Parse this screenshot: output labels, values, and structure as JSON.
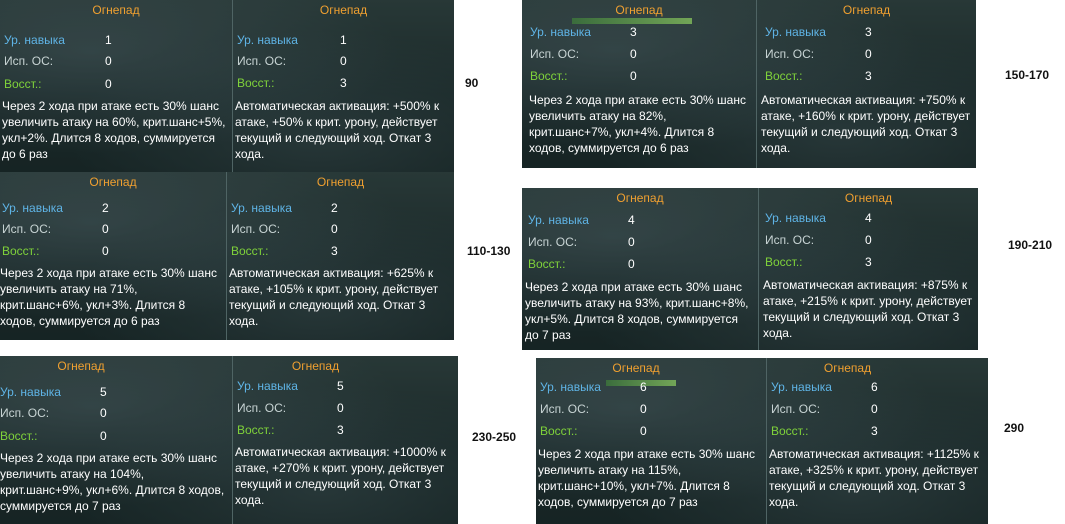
{
  "labels": {
    "level": "Ур. навыка",
    "sp": "Исп. ОС:",
    "recovery": "Восст.:"
  },
  "side_marks": [
    "90",
    "150-170",
    "110-130",
    "190-210",
    "230-250",
    "290"
  ],
  "panels": [
    {
      "cards": [
        {
          "title": "Огнепад",
          "level": "1",
          "sp": "0",
          "recovery": "0",
          "desc": "Через 2 хода при атаке есть 30% шанс увеличить атаку на 60%, крит.шанс+5%, укл+2%. Длится 8 ходов, суммируется до 6 раз"
        },
        {
          "title": "Огнепад",
          "level": "1",
          "sp": "0",
          "recovery": "3",
          "desc": "Автоматическая активация: +500% к атаке, +50% к крит. урону, действует текущий и следующий ход. Откат 3 хода."
        }
      ]
    },
    {
      "cards": [
        {
          "title": "Огнепад",
          "level": "3",
          "sp": "0",
          "recovery": "0",
          "desc": "Через 2 хода при атаке есть 30% шанс увеличить атаку на 82%, крит.шанс+7%, укл+4%. Длится 8 ходов, суммируется до 6 раз"
        },
        {
          "title": "Огнепад",
          "level": "3",
          "sp": "0",
          "recovery": "3",
          "desc": "Автоматическая активация: +750% к атаке, +160% к крит. урону, действует текущий и следующий ход. Откат 3 хода."
        }
      ]
    },
    {
      "cards": [
        {
          "title": "Огнепад",
          "level": "2",
          "sp": "0",
          "recovery": "0",
          "desc": "Через 2 хода при атаке есть 30% шанс увеличить атаку на 71%, крит.шанс+6%, укл+3%. Длится 8 ходов, суммируется до 6 раз"
        },
        {
          "title": "Огнепад",
          "level": "2",
          "sp": "0",
          "recovery": "3",
          "desc": "Автоматическая активация: +625% к атаке, +105% к крит. урону, действует текущий и следующий ход. Откат 3 хода."
        }
      ]
    },
    {
      "cards": [
        {
          "title": "Огнепад",
          "level": "4",
          "sp": "0",
          "recovery": "0",
          "desc": "Через 2 хода при атаке есть 30% шанс увеличить атаку на 93%, крит.шанс+8%, укл+5%. Длится 8 ходов, суммируется до 7 раз"
        },
        {
          "title": "Огнепад",
          "level": "4",
          "sp": "0",
          "recovery": "3",
          "desc": "Автоматическая активация: +875% к атаке, +215% к крит. урону, действует текущий и следующий ход. Откат 3 хода."
        }
      ]
    },
    {
      "cards": [
        {
          "title": "Огнепад",
          "level": "5",
          "sp": "0",
          "recovery": "0",
          "desc": "Через 2 хода при атаке есть 30% шанс увеличить атаку на 104%, крит.шанс+9%, укл+6%. Длится 8 ходов, суммируется до 7 раз"
        },
        {
          "title": "Огнепад",
          "level": "5",
          "sp": "0",
          "recovery": "3",
          "desc": "Автоматическая активация: +1000% к атаке, +270% к крит. урону, действует текущий и следующий ход. Откат 3 хода."
        }
      ]
    },
    {
      "cards": [
        {
          "title": "Огнепад",
          "level": "6",
          "sp": "0",
          "recovery": "0",
          "desc": "Через 2 хода при атаке есть 30% шанс увеличить атаку на 115%, крит.шанс+10%, укл+7%. Длится 8 ходов, суммируется до 7 раз"
        },
        {
          "title": "Огнепад",
          "level": "6",
          "sp": "0",
          "recovery": "3",
          "desc": "Автоматическая активация: +1125% к атаке, +325% к крит. урону, действует текущий и следующий ход. Откат 3 хода."
        }
      ]
    }
  ]
}
